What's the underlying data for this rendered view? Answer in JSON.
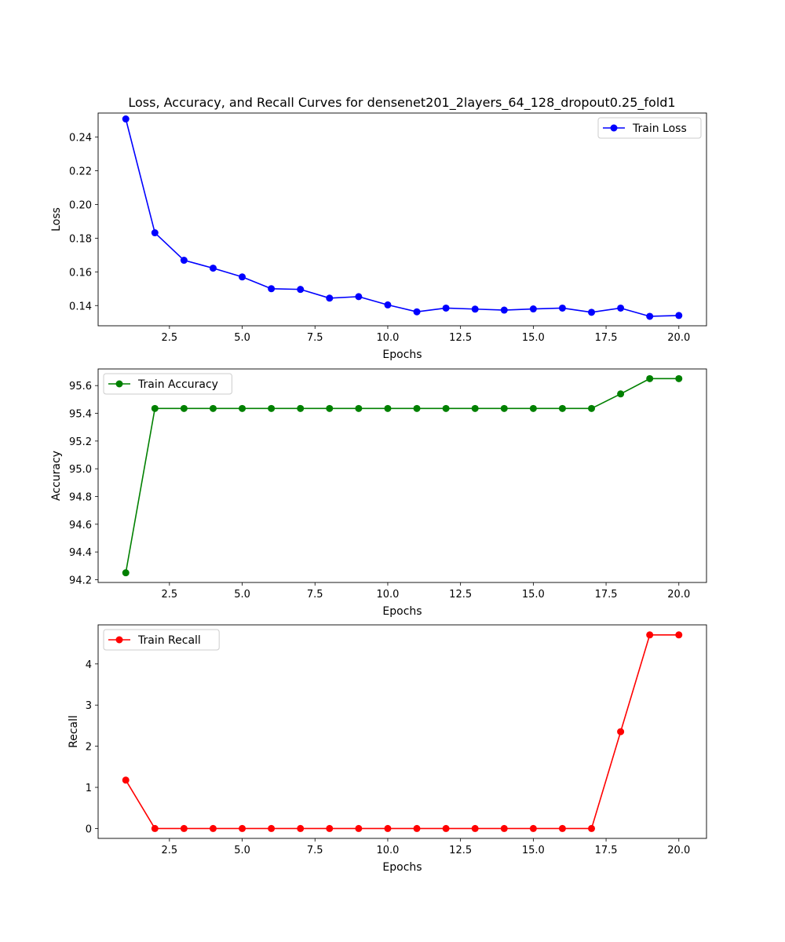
{
  "title": "Loss, Accuracy, and Recall Curves for densenet201_2layers_64_128_dropout0.25_fold1",
  "chart_data": [
    {
      "type": "line",
      "title": "Loss, Accuracy, and Recall Curves for densenet201_2layers_64_128_dropout0.25_fold1",
      "xlabel": "Epochs",
      "ylabel": "Loss",
      "legend_position": "top-right",
      "color": "#0000ff",
      "xlim": [
        0.05,
        20.95
      ],
      "ylim": [
        0.128,
        0.2543
      ],
      "xticks": [
        2.5,
        5.0,
        7.5,
        10.0,
        12.5,
        15.0,
        17.5,
        20.0
      ],
      "yticks": [
        0.14,
        0.16,
        0.18,
        0.2,
        0.22,
        0.24
      ],
      "ytick_decimals": 2,
      "series": [
        {
          "name": "Train Loss",
          "x": [
            1,
            2,
            3,
            4,
            5,
            6,
            7,
            8,
            9,
            10,
            11,
            12,
            13,
            14,
            15,
            16,
            17,
            18,
            19,
            20
          ],
          "y": [
            0.2508,
            0.1832,
            0.1669,
            0.1622,
            0.157,
            0.15,
            0.1496,
            0.1444,
            0.1453,
            0.1404,
            0.1363,
            0.1385,
            0.1379,
            0.1373,
            0.138,
            0.1385,
            0.136,
            0.1385,
            0.1336,
            0.1341
          ]
        }
      ]
    },
    {
      "type": "line",
      "title": "",
      "xlabel": "Epochs",
      "ylabel": "Accuracy",
      "legend_position": "top-left",
      "color": "#008000",
      "xlim": [
        0.05,
        20.95
      ],
      "ylim": [
        94.18,
        95.72
      ],
      "xticks": [
        2.5,
        5.0,
        7.5,
        10.0,
        12.5,
        15.0,
        17.5,
        20.0
      ],
      "yticks": [
        94.2,
        94.4,
        94.6,
        94.8,
        95.0,
        95.2,
        95.4,
        95.6
      ],
      "ytick_decimals": 1,
      "series": [
        {
          "name": "Train Accuracy",
          "x": [
            1,
            2,
            3,
            4,
            5,
            6,
            7,
            8,
            9,
            10,
            11,
            12,
            13,
            14,
            15,
            16,
            17,
            18,
            19,
            20
          ],
          "y": [
            94.25,
            95.435,
            95.435,
            95.435,
            95.435,
            95.435,
            95.435,
            95.435,
            95.435,
            95.435,
            95.435,
            95.435,
            95.435,
            95.435,
            95.435,
            95.435,
            95.435,
            95.54,
            95.65,
            95.65
          ]
        }
      ]
    },
    {
      "type": "line",
      "title": "",
      "xlabel": "Epochs",
      "ylabel": "Recall",
      "legend_position": "top-left",
      "color": "#ff0000",
      "xlim": [
        0.05,
        20.95
      ],
      "ylim": [
        -0.24,
        4.95
      ],
      "xticks": [
        2.5,
        5.0,
        7.5,
        10.0,
        12.5,
        15.0,
        17.5,
        20.0
      ],
      "yticks": [
        0,
        1,
        2,
        3,
        4
      ],
      "ytick_decimals": 0,
      "series": [
        {
          "name": "Train Recall",
          "x": [
            1,
            2,
            3,
            4,
            5,
            6,
            7,
            8,
            9,
            10,
            11,
            12,
            13,
            14,
            15,
            16,
            17,
            18,
            19,
            20
          ],
          "y": [
            1.176,
            0,
            0,
            0,
            0,
            0,
            0,
            0,
            0,
            0,
            0,
            0,
            0,
            0,
            0,
            0,
            0,
            2.353,
            4.706,
            4.706
          ]
        }
      ]
    }
  ]
}
